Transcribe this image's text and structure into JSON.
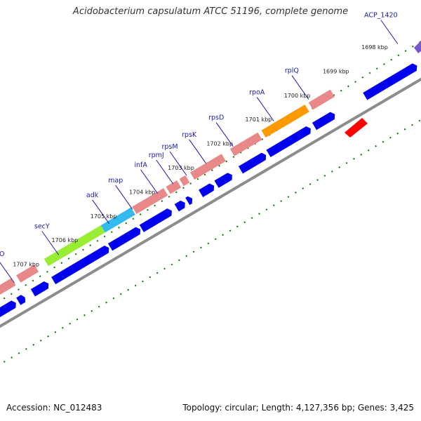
{
  "title": "Acidobacterium capsulatum ATCC 51196, complete genome",
  "footer": {
    "accession": "Accession: NC_012483",
    "summary": "Topology: circular; Length: 4,127,356 bp; Genes: 3,425"
  },
  "colors": {
    "backbone": "#8c8c8c",
    "cds_forward": "#0000ee",
    "cds_reverse": "#e88888",
    "rna": "#ff0000",
    "tick": "#007700",
    "label_line": "#1a1ab0",
    "secY": "#99ee33",
    "adk": "#33bbee",
    "rpoA": "#ff9900",
    "acp": "#7755cc"
  },
  "kbp_marks": [
    {
      "label": "1698 kbp",
      "kb": 1698
    },
    {
      "label": "1699 kbp",
      "kb": 1699
    },
    {
      "label": "1700 kbp",
      "kb": 1700
    },
    {
      "label": "1701 kbp",
      "kb": 1701
    },
    {
      "label": "1702 kbp",
      "kb": 1702
    },
    {
      "label": "1703 kbp",
      "kb": 1703
    },
    {
      "label": "1704 kbp",
      "kb": 1704
    },
    {
      "label": "1705 kbp",
      "kb": 1705
    },
    {
      "label": "1706 kbp",
      "kb": 1706
    },
    {
      "label": "1707 kbp",
      "kb": 1707
    }
  ],
  "gene_labels": [
    {
      "name": "ACP_1420",
      "kb": 1697.55
    },
    {
      "name": "rplQ",
      "kb": 1699.85
    },
    {
      "name": "rpoA",
      "kb": 1700.75
    },
    {
      "name": "rpsD",
      "kb": 1701.8
    },
    {
      "name": "rpsK",
      "kb": 1702.5
    },
    {
      "name": "rpsM",
      "kb": 1703.0
    },
    {
      "name": "rpmJ",
      "kb": 1703.35
    },
    {
      "name": "infA",
      "kb": 1703.75
    },
    {
      "name": "map",
      "kb": 1704.4
    },
    {
      "name": "adk",
      "kb": 1705.0
    },
    {
      "name": "secY",
      "kb": 1706.3
    },
    {
      "name": "rplO",
      "kb": 1707.45
    }
  ]
}
